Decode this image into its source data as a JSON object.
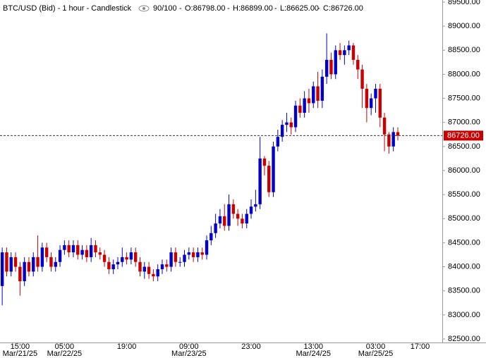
{
  "chart_data": {
    "type": "candlestick",
    "header": {
      "title": "BTC/USD (Bid) - 1 hour - Candlestick",
      "count": "90/100",
      "open": "O:86798.00",
      "high": "H:86899.00",
      "low": "L:86625.00",
      "close": "C:86726.00"
    },
    "up_color": "#0000c8",
    "down_color": "#c80000",
    "x": [
      0,
      1,
      2,
      3,
      4,
      5,
      6,
      7,
      8,
      9,
      10,
      11,
      12,
      13,
      14,
      15,
      16,
      17,
      18,
      19,
      20,
      21,
      22,
      23,
      24,
      25,
      26,
      27,
      28,
      29,
      30,
      31,
      32,
      33,
      34,
      35,
      36,
      37,
      38,
      39,
      40,
      41,
      42,
      43,
      44,
      45,
      46,
      47,
      48,
      49,
      50,
      51,
      52,
      53,
      54,
      55,
      56,
      57,
      58,
      59,
      60,
      61,
      62,
      63,
      64,
      65,
      66,
      67,
      68,
      69,
      70,
      71,
      72,
      73,
      74,
      75,
      76,
      77,
      78,
      79,
      80,
      81,
      82,
      83,
      84,
      85,
      86,
      87,
      88,
      89
    ],
    "open": [
      83600,
      84300,
      83900,
      84200,
      84000,
      83700,
      84100,
      83900,
      84200,
      84000,
      84400,
      84200,
      84000,
      84100,
      84350,
      84450,
      84300,
      84450,
      84250,
      84350,
      84200,
      84450,
      84300,
      84250,
      84100,
      83950,
      84050,
      84100,
      84200,
      84150,
      84300,
      84100,
      83900,
      84000,
      83850,
      83800,
      83950,
      84050,
      84000,
      84300,
      84100,
      84100,
      84250,
      84300,
      84200,
      84300,
      84250,
      84550,
      84700,
      84900,
      85050,
      84850,
      85300,
      85100,
      85000,
      84900,
      85100,
      85250,
      85300,
      86250,
      86100,
      85550,
      86500,
      86700,
      86950,
      87000,
      86900,
      87350,
      87200,
      87500,
      87400,
      87750,
      87450,
      87950,
      88300,
      88000,
      88500,
      88400,
      88500,
      88600,
      88300,
      88100,
      87700,
      87300,
      87500,
      87700,
      87100,
      86750,
      86500,
      86798
    ],
    "high": [
      84400,
      84400,
      84300,
      84300,
      84100,
      84200,
      84200,
      84300,
      84650,
      84500,
      84500,
      84300,
      84200,
      84450,
      84550,
      84550,
      84550,
      84550,
      84450,
      84450,
      84600,
      84550,
      84400,
      84350,
      84200,
      84150,
      84200,
      84400,
      84300,
      84400,
      84400,
      84200,
      84100,
      84100,
      83950,
      84050,
      84150,
      84150,
      84400,
      84400,
      84200,
      84350,
      84400,
      84400,
      84400,
      84400,
      84650,
      84850,
      85100,
      85200,
      85300,
      85500,
      85400,
      85200,
      85100,
      85200,
      85400,
      85600,
      86700,
      86300,
      86200,
      86600,
      86850,
      87050,
      87200,
      87100,
      87450,
      87500,
      87650,
      87700,
      87850,
      88050,
      88100,
      88850,
      88450,
      88600,
      88650,
      88600,
      88700,
      88650,
      88400,
      88200,
      87800,
      87600,
      87800,
      87800,
      87200,
      86800,
      86900,
      86899
    ],
    "low": [
      83200,
      83800,
      83800,
      83900,
      83400,
      83600,
      83800,
      83800,
      83900,
      83900,
      84100,
      83900,
      83900,
      84000,
      84250,
      84200,
      84200,
      84150,
      84150,
      84100,
      84100,
      84200,
      84150,
      84000,
      83850,
      83850,
      83950,
      84000,
      84050,
      84050,
      84000,
      83800,
      83750,
      83750,
      83700,
      83700,
      83850,
      83900,
      83900,
      84000,
      84000,
      84000,
      84150,
      84100,
      84100,
      84150,
      84150,
      84450,
      84600,
      84800,
      84750,
      84750,
      85000,
      84850,
      84800,
      84800,
      85000,
      85150,
      85200,
      85900,
      85450,
      85450,
      86400,
      86600,
      86800,
      86750,
      86800,
      87100,
      87100,
      87200,
      87300,
      87300,
      87300,
      87800,
      87900,
      87900,
      88300,
      88200,
      88400,
      88200,
      87900,
      87300,
      87000,
      87150,
      87200,
      86900,
      86400,
      86350,
      86400,
      86625
    ],
    "close": [
      84300,
      83900,
      84200,
      84000,
      83700,
      84100,
      83900,
      84200,
      84000,
      84400,
      84200,
      84000,
      84100,
      84350,
      84450,
      84300,
      84450,
      84250,
      84350,
      84200,
      84450,
      84300,
      84250,
      84100,
      83950,
      84050,
      84100,
      84200,
      84150,
      84300,
      84100,
      83900,
      84000,
      83850,
      83800,
      83950,
      84050,
      84000,
      84300,
      84100,
      84100,
      84250,
      84300,
      84200,
      84300,
      84250,
      84550,
      84700,
      84900,
      85050,
      84850,
      85300,
      85100,
      85000,
      84900,
      85100,
      85250,
      85300,
      86250,
      86100,
      85550,
      86500,
      86700,
      86950,
      87000,
      86900,
      87350,
      87200,
      87500,
      87400,
      87750,
      87450,
      87950,
      88300,
      88000,
      88500,
      88400,
      88500,
      88600,
      88300,
      88100,
      87700,
      87300,
      87500,
      87700,
      87100,
      86750,
      86500,
      86800,
      86726
    ],
    "xlim": [
      -0.5,
      99
    ],
    "xticks": [
      {
        "value": 4,
        "label": "15:00"
      },
      {
        "value": 14,
        "label": "05:00"
      },
      {
        "value": 28,
        "label": "19:00"
      },
      {
        "value": 42,
        "label": "09:00"
      },
      {
        "value": 56,
        "label": "23:00"
      },
      {
        "value": 70,
        "label": "13:00"
      },
      {
        "value": 84,
        "label": "03:00"
      },
      {
        "value": 94,
        "label": "17:00"
      }
    ],
    "xdates": [
      {
        "value": 4,
        "label": "Mar/21/25"
      },
      {
        "value": 14,
        "label": "Mar/22/25"
      },
      {
        "value": 42,
        "label": "Mar/23/25"
      },
      {
        "value": 70,
        "label": "Mar/24/25"
      },
      {
        "value": 84,
        "label": "Mar/25/25"
      }
    ],
    "ylim": [
      82500,
      89500
    ],
    "yticks": [
      {
        "value": 82500,
        "label": "82500.00"
      },
      {
        "value": 83000,
        "label": "83000.00"
      },
      {
        "value": 83500,
        "label": "83500.00"
      },
      {
        "value": 84000,
        "label": "84000.00"
      },
      {
        "value": 84500,
        "label": "84500.00"
      },
      {
        "value": 85000,
        "label": "85000.00"
      },
      {
        "value": 85500,
        "label": "85500.00"
      },
      {
        "value": 86000,
        "label": "86000.00"
      },
      {
        "value": 86500,
        "label": "86500.00"
      },
      {
        "value": 87000,
        "label": "87000.00"
      },
      {
        "value": 87500,
        "label": "87500.00"
      },
      {
        "value": 88000,
        "label": "88000.00"
      },
      {
        "value": 88500,
        "label": "88500.00"
      },
      {
        "value": 89000,
        "label": "89000.00"
      },
      {
        "value": 89500,
        "label": "89500.00"
      }
    ],
    "last_price": {
      "value": 86726,
      "label": "86726.00"
    }
  }
}
